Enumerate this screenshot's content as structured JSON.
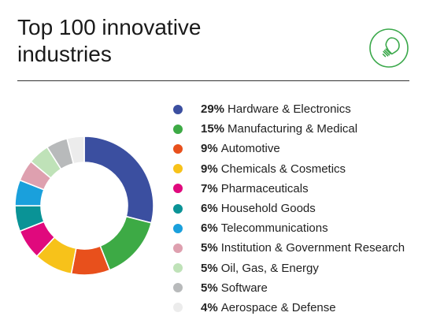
{
  "title": "Top 100 innovative industries",
  "header_icon": "lightbulb-icon",
  "accent_color": "#3aa84a",
  "chart_data": {
    "type": "pie",
    "style": "donut",
    "legend_position": "right",
    "slices": [
      {
        "label": "Hardware & Electronics",
        "value": 29,
        "value_label": "29%",
        "color": "#3b4fa0"
      },
      {
        "label": "Manufacturing & Medical",
        "value": 15,
        "value_label": "15%",
        "color": "#3daa45"
      },
      {
        "label": "Automotive",
        "value": 9,
        "value_label": "9%",
        "color": "#e8501c"
      },
      {
        "label": "Chemicals & Cosmetics",
        "value": 9,
        "value_label": "9%",
        "color": "#f7c21a"
      },
      {
        "label": "Pharmaceuticals",
        "value": 7,
        "value_label": "7%",
        "color": "#e0097d"
      },
      {
        "label": "Household Goods",
        "value": 6,
        "value_label": "6%",
        "color": "#0a9396"
      },
      {
        "label": "Telecommunications",
        "value": 6,
        "value_label": "6%",
        "color": "#1aa0dc"
      },
      {
        "label": "Institution & Government Research",
        "value": 5,
        "value_label": "5%",
        "color": "#dea0af"
      },
      {
        "label": "Oil, Gas, & Energy",
        "value": 5,
        "value_label": "5%",
        "color": "#bfe2b8"
      },
      {
        "label": "Software",
        "value": 5,
        "value_label": "5%",
        "color": "#b8babb"
      },
      {
        "label": "Aerospace & Defense",
        "value": 4,
        "value_label": "4%",
        "color": "#ececec"
      }
    ]
  }
}
